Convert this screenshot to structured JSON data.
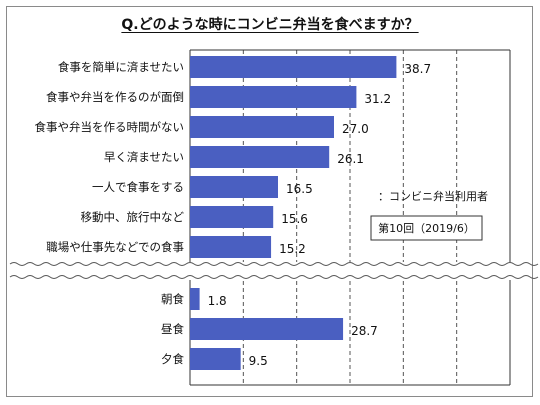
{
  "chart_data": {
    "type": "bar",
    "orientation": "horizontal",
    "title": "Q.どのような時にコンビニ弁当を食べますか？",
    "xlim": [
      0,
      60
    ],
    "grid": "vertical-dashed",
    "bar_color": "#4a5fc1",
    "groups": [
      {
        "categories": [
          "食事を簡単に済ませたい",
          "食事や弁当を作るのが面倒",
          "食事や弁当を作る時間がない",
          "早く済ませたい",
          "一人で食事をする",
          "移動中、旅行中など",
          "職場や仕事先などでの食事"
        ],
        "values": [
          38.7,
          31.2,
          27.0,
          26.1,
          16.5,
          15.6,
          15.2
        ],
        "value_labels": [
          "38.7",
          "31.2",
          "27.0",
          "26.1",
          "16.5",
          "15.6",
          "15.2"
        ]
      },
      {
        "categories": [
          "朝食",
          "昼食",
          "夕食"
        ],
        "values": [
          1.8,
          28.7,
          9.5
        ],
        "value_labels": [
          "1.8",
          "28.7",
          "9.5"
        ]
      }
    ],
    "annotations": {
      "base_note": "：コンビニ弁当利用者",
      "survey_box": "第10回（2019/6）"
    }
  }
}
